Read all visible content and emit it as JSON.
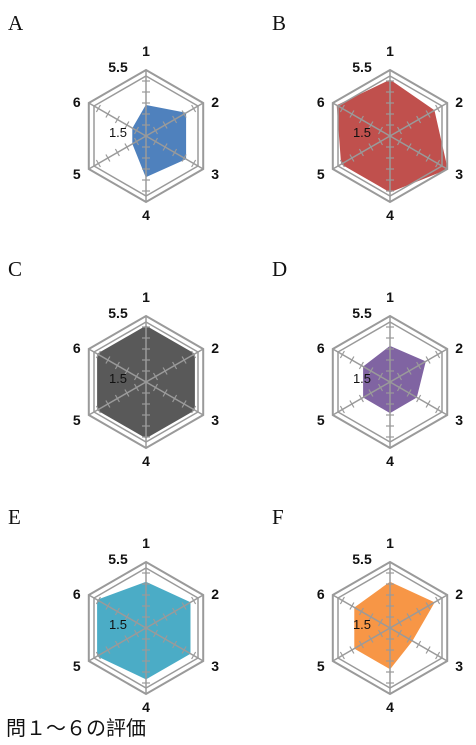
{
  "caption": "問１～６の評価",
  "chart_data": [
    {
      "type": "radar",
      "panel": "A",
      "categories": [
        "1",
        "2",
        "3",
        "4",
        "5",
        "6"
      ],
      "values": [
        3,
        4.5,
        4.5,
        4,
        1.5,
        1.5
      ],
      "rlim": [
        0,
        6.5
      ],
      "tick_labels": [
        "5.5",
        "1.5"
      ],
      "fill_color": "#4f81bd",
      "grid": true
    },
    {
      "type": "radar",
      "panel": "B",
      "categories": [
        "1",
        "2",
        "3",
        "4",
        "5",
        "6"
      ],
      "values": [
        5.5,
        5,
        6.5,
        5.5,
        5.5,
        6
      ],
      "rlim": [
        0,
        6.5
      ],
      "tick_labels": [
        "5.5",
        "1.5"
      ],
      "fill_color": "#c0504d",
      "grid": true
    },
    {
      "type": "radar",
      "panel": "C",
      "categories": [
        "1",
        "2",
        "3",
        "4",
        "5",
        "6"
      ],
      "values": [
        5.5,
        5.5,
        5.5,
        5.5,
        5.5,
        5.5
      ],
      "rlim": [
        0,
        6.5
      ],
      "tick_labels": [
        "5.5",
        "1.5"
      ],
      "fill_color": "#595959",
      "grid": true
    },
    {
      "type": "radar",
      "panel": "D",
      "categories": [
        "1",
        "2",
        "3",
        "4",
        "5",
        "6"
      ],
      "values": [
        3.5,
        4,
        3,
        3,
        3,
        3
      ],
      "rlim": [
        0,
        6.5
      ],
      "tick_labels": [
        "5.5",
        "1.5"
      ],
      "fill_color": "#8064a2",
      "grid": true
    },
    {
      "type": "radar",
      "panel": "E",
      "categories": [
        "1",
        "2",
        "3",
        "4",
        "5",
        "6"
      ],
      "values": [
        4.5,
        5,
        5,
        5,
        5.5,
        5.5
      ],
      "rlim": [
        0,
        6.5
      ],
      "tick_labels": [
        "5.5",
        "1.5"
      ],
      "fill_color": "#4bacc6",
      "grid": true
    },
    {
      "type": "radar",
      "panel": "F",
      "categories": [
        "1",
        "2",
        "3",
        "4",
        "5",
        "6"
      ],
      "values": [
        4.5,
        5,
        2.5,
        4,
        4,
        4
      ],
      "rlim": [
        0,
        6.5
      ],
      "tick_labels": [
        "5.5",
        "1.5"
      ],
      "fill_color": "#f79646",
      "grid": true
    }
  ]
}
